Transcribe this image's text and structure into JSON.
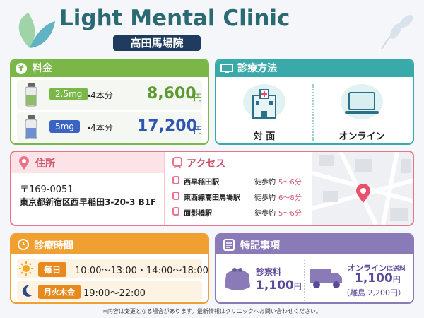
{
  "header": {
    "title": "Light Mental Clinic",
    "subtitle": "高田馬場院"
  },
  "pricing": {
    "icon": "¥",
    "title": "料金",
    "items": [
      {
        "dose": "2.5mg",
        "qty": "・4本分",
        "price": "8,600",
        "unit": "円"
      },
      {
        "dose": "5mg",
        "qty": "・4本分",
        "price": "17,200",
        "unit": "円"
      }
    ]
  },
  "method": {
    "title": "診療方法",
    "options": [
      "対 面",
      "オンライン"
    ]
  },
  "address": {
    "title": "住所",
    "postal": "〒169-0051",
    "line": "東京都新宿区西早稲田3-20-3 B1F"
  },
  "access": {
    "title": "アクセス",
    "stations": [
      {
        "name": "西早稲田駅",
        "walk": "徒歩約",
        "time": "5～6分"
      },
      {
        "name": "東西線高田馬場駅",
        "walk": "徒歩約",
        "time": "6～8分"
      },
      {
        "name": "面影橋駅",
        "walk": "徒歩約",
        "time": "5～6分"
      }
    ]
  },
  "hours": {
    "title": "診療時間",
    "rows": [
      {
        "days": "毎日",
        "time": "10:00～13:00・14:00～18:00"
      },
      {
        "days": "月火木金",
        "time": "19:00～22:00"
      }
    ]
  },
  "notes": {
    "title": "特記事項",
    "fee": {
      "label": "診察料",
      "price": "1,100",
      "unit": "円"
    },
    "shipping": {
      "label": "オンライン",
      "label_suffix": "は送料",
      "price": "1,100",
      "unit": "円",
      "remote": "（離島 2,200円）"
    }
  },
  "footer": "※内容は変更となる場合があります。最新情報はクリニックへお問い合わせください。"
}
